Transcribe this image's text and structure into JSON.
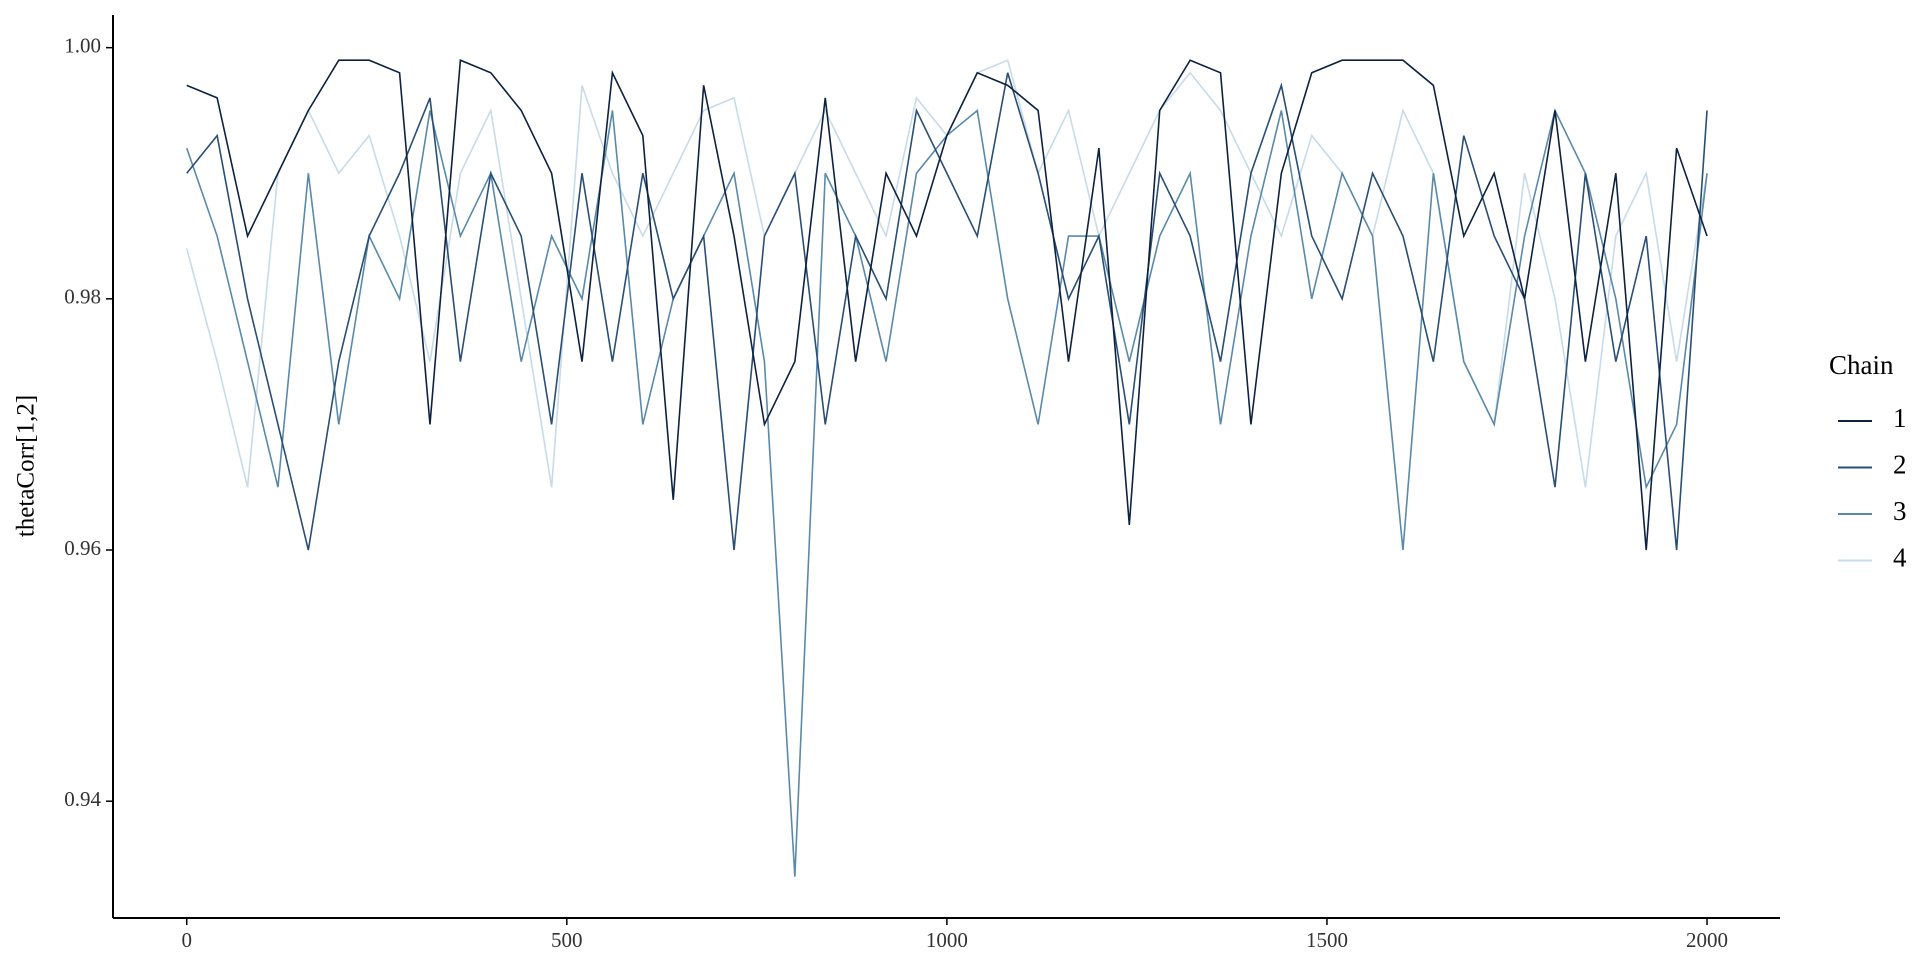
{
  "chart_data": {
    "type": "line",
    "ylabel": "thetaCorr[1,2]",
    "legend_title": "Chain",
    "legend_position": "right",
    "grid": false,
    "xlim": [
      -97,
      2096
    ],
    "ylim": [
      0.9307,
      1.0026
    ],
    "xticks": [
      0,
      500,
      1000,
      1500,
      2000
    ],
    "yticks": [
      0.94,
      0.96,
      0.98,
      {
        "value": 1,
        "label": "1.00"
      }
    ],
    "x": [
      0,
      40,
      80,
      120,
      160,
      200,
      240,
      280,
      320,
      360,
      400,
      440,
      480,
      520,
      560,
      600,
      640,
      680,
      720,
      760,
      800,
      840,
      880,
      920,
      960,
      1000,
      1040,
      1080,
      1120,
      1160,
      1200,
      1240,
      1280,
      1320,
      1360,
      1400,
      1440,
      1480,
      1520,
      1560,
      1600,
      1640,
      1680,
      1720,
      1760,
      1800,
      1840,
      1880,
      1920,
      1960,
      2000
    ],
    "series": [
      {
        "name": "1",
        "color": "#0d2240",
        "values": [
          0.997,
          0.996,
          0.985,
          0.99,
          0.995,
          0.999,
          0.999,
          0.998,
          0.97,
          0.999,
          0.998,
          0.995,
          0.99,
          0.975,
          0.998,
          0.993,
          0.964,
          0.997,
          0.985,
          0.97,
          0.975,
          0.996,
          0.975,
          0.99,
          0.985,
          0.993,
          0.998,
          0.997,
          0.995,
          0.975,
          0.992,
          0.962,
          0.995,
          0.999,
          0.998,
          0.97,
          0.99,
          0.998,
          0.999,
          0.999,
          0.999,
          0.997,
          0.985,
          0.99,
          0.98,
          0.995,
          0.975,
          0.99,
          0.96,
          0.992,
          0.985
        ]
      },
      {
        "name": "2",
        "color": "#2a4e74",
        "values": [
          0.99,
          0.993,
          0.98,
          0.97,
          0.96,
          0.975,
          0.985,
          0.99,
          0.996,
          0.975,
          0.99,
          0.985,
          0.97,
          0.99,
          0.975,
          0.99,
          0.98,
          0.985,
          0.96,
          0.985,
          0.99,
          0.97,
          0.985,
          0.98,
          0.995,
          0.99,
          0.985,
          0.998,
          0.99,
          0.98,
          0.985,
          0.97,
          0.99,
          0.985,
          0.975,
          0.99,
          0.997,
          0.985,
          0.98,
          0.99,
          0.985,
          0.975,
          0.993,
          0.985,
          0.98,
          0.965,
          0.99,
          0.975,
          0.985,
          0.96,
          0.995
        ]
      },
      {
        "name": "3",
        "color": "#5a8aa8",
        "values": [
          0.992,
          0.985,
          0.975,
          0.965,
          0.99,
          0.97,
          0.985,
          0.98,
          0.995,
          0.985,
          0.99,
          0.975,
          0.985,
          0.98,
          0.995,
          0.97,
          0.98,
          0.985,
          0.99,
          0.975,
          0.934,
          0.99,
          0.985,
          0.975,
          0.99,
          0.993,
          0.995,
          0.98,
          0.97,
          0.985,
          0.985,
          0.975,
          0.985,
          0.99,
          0.97,
          0.985,
          0.995,
          0.98,
          0.99,
          0.985,
          0.96,
          0.99,
          0.975,
          0.97,
          0.985,
          0.995,
          0.99,
          0.98,
          0.965,
          0.97,
          0.99
        ]
      },
      {
        "name": "4",
        "color": "#c8dbe8",
        "values": [
          0.984,
          0.975,
          0.965,
          0.99,
          0.995,
          0.99,
          0.993,
          0.985,
          0.975,
          0.99,
          0.995,
          0.98,
          0.965,
          0.997,
          0.99,
          0.985,
          0.99,
          0.995,
          0.996,
          0.985,
          0.99,
          0.995,
          0.99,
          0.985,
          0.996,
          0.993,
          0.998,
          0.999,
          0.99,
          0.995,
          0.985,
          0.99,
          0.995,
          0.998,
          0.995,
          0.99,
          0.985,
          0.993,
          0.99,
          0.985,
          0.995,
          0.99,
          0.975,
          0.97,
          0.99,
          0.98,
          0.965,
          0.985,
          0.99,
          0.975,
          0.99
        ]
      }
    ]
  }
}
